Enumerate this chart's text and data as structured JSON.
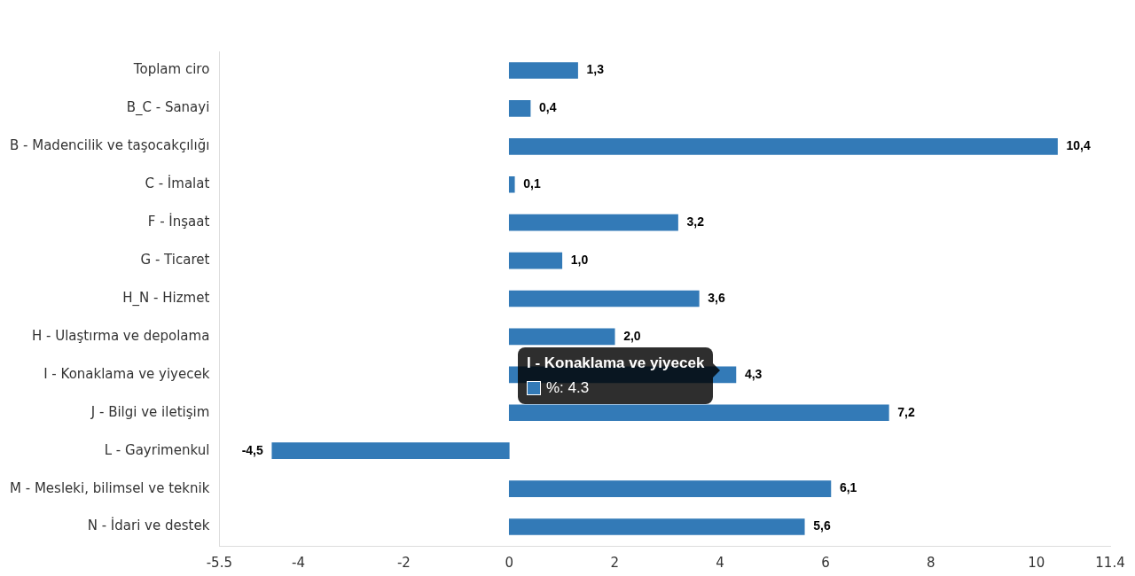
{
  "chart_data": {
    "type": "bar",
    "orientation": "horizontal",
    "categories": [
      "Toplam ciro",
      "B_C - Sanayi",
      "B - Madencilik ve taşocakçılığı",
      "C - İmalat",
      "F - İnşaat",
      "G - Ticaret",
      "H_N - Hizmet",
      "H - Ulaştırma ve depolama",
      "I - Konaklama ve yiyecek",
      "J - Bilgi ve iletişim",
      "L - Gayrimenkul",
      "M - Mesleki, bilimsel ve teknik",
      "N - İdari ve destek"
    ],
    "values": [
      1.3,
      0.4,
      10.4,
      0.1,
      3.2,
      1.0,
      3.6,
      2.0,
      4.3,
      7.2,
      -4.5,
      6.1,
      5.6
    ],
    "value_labels": [
      "1,3",
      "0,4",
      "10,4",
      "0,1",
      "3,2",
      "1,0",
      "3,6",
      "2,0",
      "4,3",
      "7,2",
      "-4,5",
      "6,1",
      "5,6"
    ],
    "color": "#337ab7",
    "xlim": [
      -5.5,
      11.4
    ],
    "xticks": [
      -5.5,
      -4,
      -2,
      0,
      2,
      4,
      6,
      8,
      10,
      11.4
    ],
    "annotations": [
      "I - Konaklama ve yiyecek",
      "%: 4.3"
    ],
    "legend": false
  }
}
